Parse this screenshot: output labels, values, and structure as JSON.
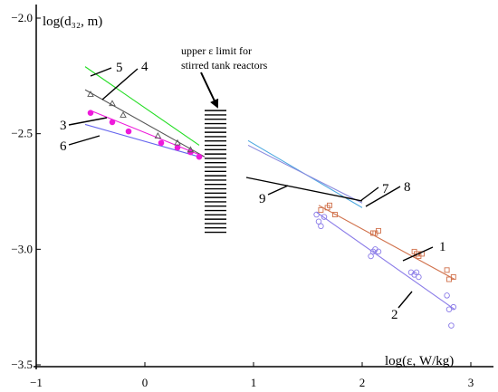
{
  "chart_data": {
    "type": "scatter",
    "xlabel": "log(ε, W/kg)",
    "ylabel": "log(d₃₂, m)",
    "xlim": [
      -1,
      3
    ],
    "ylim": [
      -3.5,
      -2.0
    ],
    "x_ticks": [
      "−1",
      "0",
      "1",
      "2",
      "3"
    ],
    "x_tick_values": [
      -1,
      0,
      1,
      2,
      3
    ],
    "y_ticks": [
      "−2.0",
      "−2.5",
      "−3.0",
      "−3.5"
    ],
    "y_tick_values": [
      -2.0,
      -2.5,
      -3.0,
      -3.5
    ],
    "grid": false,
    "annotation": {
      "line1": "upper   ε   limit   for",
      "line2": "stirred tank reactors",
      "band_x": [
        0.55,
        0.75
      ],
      "band_y": [
        -2.93,
        -2.4
      ]
    },
    "series": [
      {
        "name": "1",
        "color": "#d0704a",
        "marker": "square",
        "points": [
          [
            1.62,
            -2.83
          ],
          [
            1.68,
            -2.82
          ],
          [
            1.7,
            -2.81
          ],
          [
            1.75,
            -2.85
          ],
          [
            2.1,
            -2.93
          ],
          [
            2.12,
            -2.93
          ],
          [
            2.15,
            -2.92
          ],
          [
            2.48,
            -3.01
          ],
          [
            2.5,
            -3.02
          ],
          [
            2.52,
            -3.03
          ],
          [
            2.55,
            -3.02
          ],
          [
            2.78,
            -3.09
          ],
          [
            2.8,
            -3.13
          ],
          [
            2.84,
            -3.12
          ]
        ],
        "fit": [
          [
            1.6,
            -2.81
          ],
          [
            2.85,
            -3.13
          ]
        ]
      },
      {
        "name": "2",
        "color": "#8a7be8",
        "marker": "circle",
        "points": [
          [
            1.58,
            -2.85
          ],
          [
            1.6,
            -2.88
          ],
          [
            1.65,
            -2.86
          ],
          [
            1.62,
            -2.9
          ],
          [
            2.1,
            -3.01
          ],
          [
            2.12,
            -3.0
          ],
          [
            2.15,
            -3.01
          ],
          [
            2.08,
            -3.03
          ],
          [
            2.45,
            -3.1
          ],
          [
            2.48,
            -3.11
          ],
          [
            2.5,
            -3.1
          ],
          [
            2.52,
            -3.12
          ],
          [
            2.78,
            -3.2
          ],
          [
            2.8,
            -3.26
          ],
          [
            2.84,
            -3.25
          ],
          [
            2.82,
            -3.33
          ]
        ],
        "fit": [
          [
            1.58,
            -2.84
          ],
          [
            2.85,
            -3.26
          ]
        ]
      },
      {
        "name": "3",
        "color": "#ee1adb",
        "marker": "dot",
        "points": [
          [
            -0.5,
            -2.41
          ],
          [
            -0.3,
            -2.45
          ],
          [
            -0.15,
            -2.49
          ],
          [
            0.15,
            -2.54
          ],
          [
            0.3,
            -2.56
          ],
          [
            0.42,
            -2.58
          ],
          [
            0.5,
            -2.6
          ]
        ],
        "fit": [
          [
            -0.5,
            -2.4
          ],
          [
            0.55,
            -2.6
          ]
        ]
      },
      {
        "name": "4",
        "color": "#555555",
        "marker": "triangle",
        "points": [
          [
            -0.5,
            -2.33
          ],
          [
            -0.3,
            -2.37
          ],
          [
            -0.2,
            -2.42
          ],
          [
            0.12,
            -2.51
          ],
          [
            0.3,
            -2.54
          ],
          [
            0.42,
            -2.57
          ]
        ],
        "fit": [
          [
            -0.55,
            -2.31
          ],
          [
            0.55,
            -2.6
          ]
        ]
      },
      {
        "name": "5",
        "color": "#22dd22",
        "marker": "none",
        "points": [],
        "fit": [
          [
            -0.55,
            -2.21
          ],
          [
            0.5,
            -2.55
          ]
        ]
      },
      {
        "name": "6",
        "color": "#6666ee",
        "marker": "none",
        "points": [],
        "fit": [
          [
            -0.55,
            -2.46
          ],
          [
            0.5,
            -2.6
          ]
        ]
      },
      {
        "name": "7",
        "color": "#4da8e0",
        "marker": "none",
        "points": [],
        "fit": [
          [
            0.95,
            -2.53
          ],
          [
            2.0,
            -2.82
          ]
        ]
      },
      {
        "name": "8",
        "color": "#8888dd",
        "marker": "none",
        "points": [],
        "fit": [
          [
            0.95,
            -2.55
          ],
          [
            2.0,
            -2.8
          ]
        ]
      }
    ]
  }
}
